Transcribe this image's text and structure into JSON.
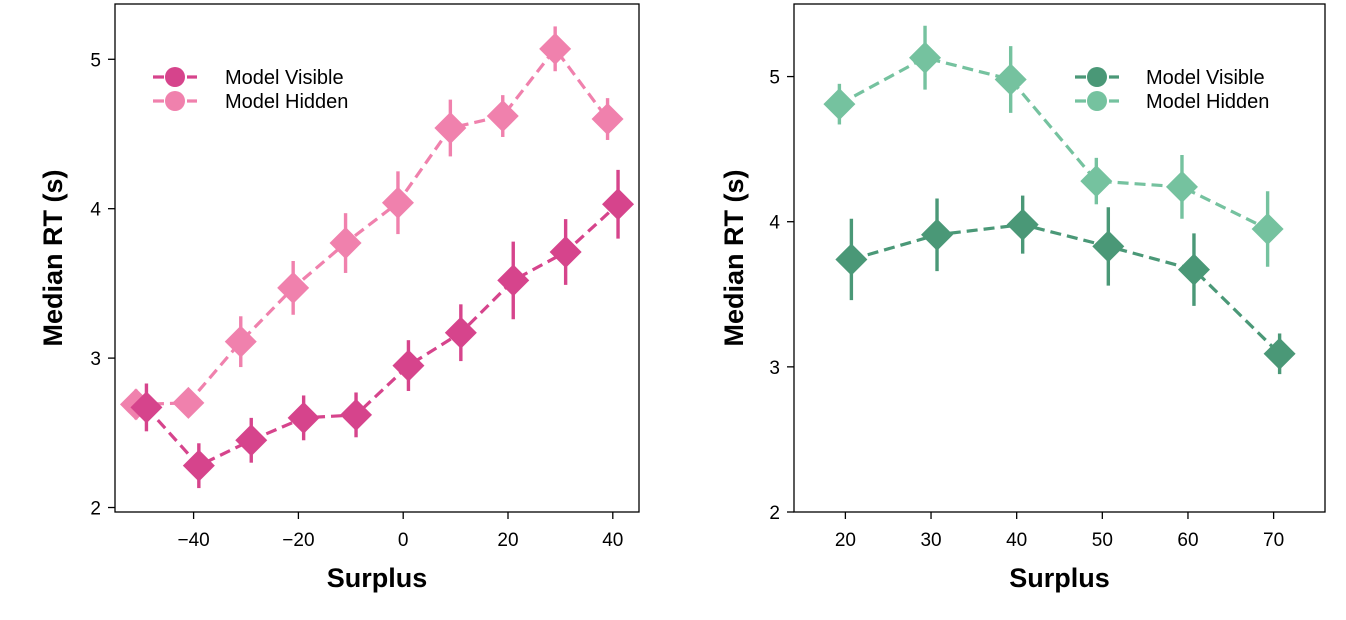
{
  "chart_data": [
    {
      "type": "line",
      "xlabel": "Surplus",
      "ylabel": "Median RT (s)",
      "xlim": [
        -55,
        45
      ],
      "ylim": [
        1.97,
        5.37
      ],
      "xticks": [
        -40,
        -20,
        0,
        20,
        40
      ],
      "yticks": [
        2,
        3,
        4,
        5
      ],
      "xtick_labels": [
        "−40",
        "−20",
        "0",
        "20",
        "40"
      ],
      "ytick_labels": [
        "2",
        "3",
        "4",
        "5"
      ],
      "legend_position": "top-left",
      "grid": false,
      "series": [
        {
          "name": "Model Visible",
          "color": "#d6448c",
          "x": [
            -49,
            -39,
            -29,
            -19,
            -9,
            1,
            11,
            21,
            31,
            41
          ],
          "y": [
            2.67,
            2.28,
            2.45,
            2.6,
            2.62,
            2.95,
            3.17,
            3.52,
            3.71,
            4.03
          ],
          "err": [
            0.16,
            0.15,
            0.15,
            0.15,
            0.15,
            0.17,
            0.19,
            0.26,
            0.22,
            0.23
          ]
        },
        {
          "name": "Model Hidden",
          "color": "#f081ad",
          "x": [
            -51,
            -41,
            -31,
            -21,
            -11,
            -1,
            9,
            19,
            29,
            39
          ],
          "y": [
            2.69,
            2.7,
            3.11,
            3.47,
            3.77,
            4.04,
            4.54,
            4.62,
            5.07,
            4.6
          ],
          "err": [
            0.1,
            0.09,
            0.17,
            0.18,
            0.2,
            0.21,
            0.19,
            0.14,
            0.15,
            0.14
          ]
        }
      ]
    },
    {
      "type": "line",
      "xlabel": "Surplus",
      "ylabel": "Median RT (s)",
      "xlim": [
        14,
        76
      ],
      "ylim": [
        2,
        5.5
      ],
      "xticks": [
        20,
        30,
        40,
        50,
        60,
        70
      ],
      "yticks": [
        2,
        3,
        4,
        5
      ],
      "xtick_labels": [
        "20",
        "30",
        "40",
        "50",
        "60",
        "70"
      ],
      "ytick_labels": [
        "2",
        "3",
        "4",
        "5"
      ],
      "legend_position": "top-right",
      "grid": false,
      "series": [
        {
          "name": "Model Visible",
          "color": "#4a9877",
          "x": [
            20.7,
            30.7,
            40.7,
            50.7,
            60.7,
            70.7
          ],
          "y": [
            3.74,
            3.91,
            3.98,
            3.83,
            3.67,
            3.09
          ],
          "err": [
            0.28,
            0.25,
            0.2,
            0.27,
            0.25,
            0.14
          ]
        },
        {
          "name": "Model Hidden",
          "color": "#75c29f",
          "x": [
            19.3,
            29.3,
            39.3,
            49.3,
            59.3,
            69.3
          ],
          "y": [
            4.81,
            5.13,
            4.98,
            4.28,
            4.24,
            3.95
          ],
          "err": [
            0.14,
            0.22,
            0.23,
            0.16,
            0.22,
            0.26
          ]
        }
      ]
    }
  ]
}
